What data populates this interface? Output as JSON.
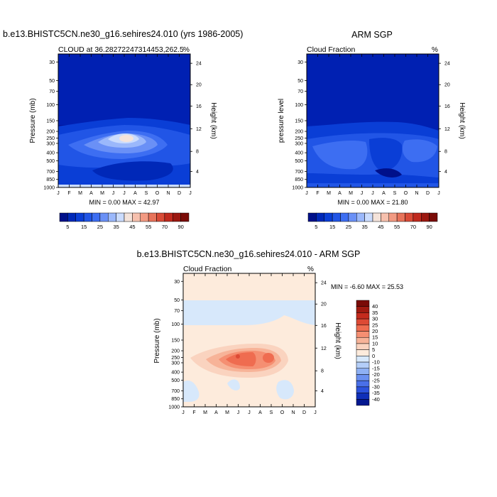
{
  "panels": {
    "model": {
      "title": "b.e13.BHISTC5CN.ne30_g16.sehires24.010 (yrs 1986-2005)",
      "subtitle": "CLOUD at 36.28272247314453,262.5",
      "unit": "%",
      "ylabel": "Pressure (mb)",
      "y2label": "Height (km)",
      "minmax": "MIN =   0.00 MAX =  42.97"
    },
    "obs": {
      "title": "ARM SGP",
      "subtitle": "Cloud Fraction",
      "unit": "%",
      "ylabel": "pressure level",
      "y2label": "Height (km)",
      "minmax": "MIN =   0.00 MAX =  21.80"
    },
    "diff": {
      "title": "b.e13.BHISTC5CN.ne30_g16.sehires24.010 - ARM SGP",
      "subtitle": "Cloud Fraction",
      "unit": "%",
      "ylabel": "Pressure (mb)",
      "y2label": "Height (km)",
      "minmax": "MIN =  -6.60 MAX =  25.53"
    }
  },
  "chart_data": [
    {
      "type": "heatmap",
      "name_ref": "model",
      "x": [
        "J",
        "F",
        "M",
        "A",
        "M",
        "J",
        "J",
        "A",
        "S",
        "O",
        "N",
        "D",
        "J"
      ],
      "yticks": [
        "30",
        "50",
        "70",
        "100",
        "150",
        "200",
        "250",
        "300",
        "400",
        "500",
        "700",
        "850",
        "1000"
      ],
      "y2ticks": [
        "24",
        "20",
        "16",
        "12",
        "8",
        "4"
      ],
      "colorbar": {
        "labels": [
          "5",
          "15",
          "25",
          "35",
          "45",
          "55",
          "70",
          "90"
        ],
        "colors": [
          "#00108a",
          "#0028b8",
          "#0a3ed6",
          "#2155e6",
          "#3d6ef2",
          "#6a90f6",
          "#9bb8fb",
          "#cbdcfd",
          "#f4e3da",
          "#f6c0ad",
          "#f29a82",
          "#e7735a",
          "#d94b37",
          "#c02a1e",
          "#9c1810",
          "#7a0b07"
        ]
      },
      "levels_min": 0,
      "levels_max": 42.97
    },
    {
      "type": "heatmap",
      "name_ref": "obs",
      "x": [
        "J",
        "F",
        "M",
        "A",
        "M",
        "J",
        "J",
        "A",
        "S",
        "O",
        "N",
        "D",
        "J"
      ],
      "yticks": [
        "30",
        "50",
        "70",
        "100",
        "150",
        "200",
        "250",
        "300",
        "400",
        "500",
        "700",
        "850",
        "1000"
      ],
      "y2ticks": [
        "24",
        "20",
        "16",
        "12",
        "8",
        "4"
      ],
      "colorbar": {
        "labels": [
          "5",
          "15",
          "25",
          "35",
          "45",
          "55",
          "70",
          "90"
        ],
        "colors": [
          "#00108a",
          "#0028b8",
          "#0a3ed6",
          "#2155e6",
          "#3d6ef2",
          "#6a90f6",
          "#9bb8fb",
          "#cbdcfd",
          "#f4e3da",
          "#f6c0ad",
          "#f29a82",
          "#e7735a",
          "#d94b37",
          "#c02a1e",
          "#9c1810",
          "#7a0b07"
        ]
      },
      "levels_min": 0,
      "levels_max": 21.8
    },
    {
      "type": "heatmap",
      "name_ref": "diff",
      "x": [
        "J",
        "F",
        "M",
        "A",
        "M",
        "J",
        "J",
        "A",
        "S",
        "O",
        "N",
        "D",
        "J"
      ],
      "yticks": [
        "30",
        "50",
        "70",
        "100",
        "150",
        "200",
        "250",
        "300",
        "400",
        "500",
        "700",
        "850",
        "1000"
      ],
      "y2ticks": [
        "24",
        "20",
        "16",
        "12",
        "8",
        "4"
      ],
      "colorbar": {
        "labels": [
          "40",
          "35",
          "30",
          "25",
          "20",
          "15",
          "10",
          "5",
          "0",
          "-10",
          "-15",
          "-20",
          "-25",
          "-30",
          "-35",
          "-40"
        ],
        "colors": [
          "#7a0b07",
          "#a01a10",
          "#c42b1d",
          "#dd4a35",
          "#ef6c50",
          "#f58f72",
          "#f7b398",
          "#fad3bf",
          "#fdebdc",
          "#d7e8fb",
          "#b4cef8",
          "#8eb0f4",
          "#6a90f0",
          "#4a70e8",
          "#2c52dc",
          "#0f2fb8",
          "#041890"
        ]
      },
      "levels_min": -6.6,
      "levels_max": 25.53
    }
  ]
}
